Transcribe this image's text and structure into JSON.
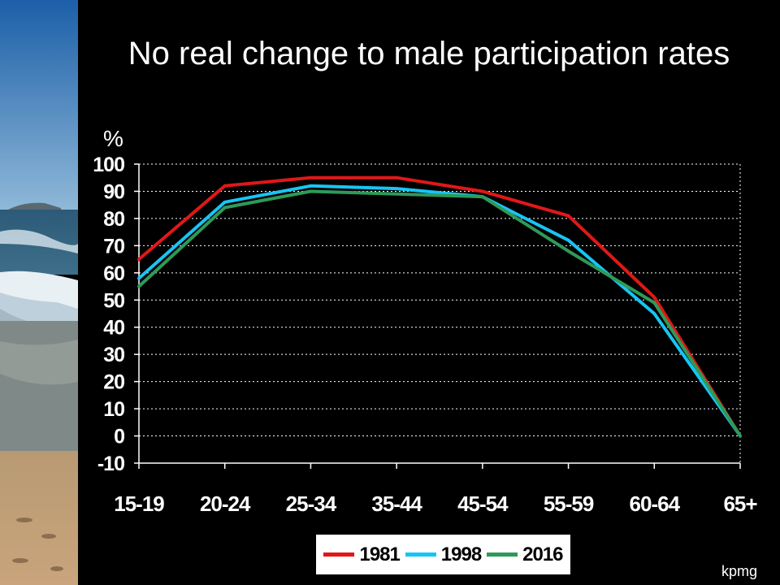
{
  "title": "No real change to male participation rates",
  "footer": "kpmg",
  "colors": {
    "1981": "#e01818",
    "1998": "#18c4f4",
    "2016": "#2e9a58",
    "background": "#000000"
  },
  "chart_data": {
    "type": "line",
    "title": "No real change to male participation rates",
    "xlabel": "",
    "ylabel": "%",
    "categories": [
      "15-19",
      "20-24",
      "25-34",
      "35-44",
      "45-54",
      "55-59",
      "60-64",
      "65+"
    ],
    "ylim": [
      -10,
      100
    ],
    "yticks": [
      -10,
      0,
      10,
      20,
      30,
      40,
      50,
      60,
      70,
      80,
      90,
      100
    ],
    "grid": true,
    "legend_position": "bottom",
    "series": [
      {
        "name": "1981",
        "color": "#e01818",
        "values": [
          65,
          92,
          95,
          95,
          90,
          81,
          51,
          0
        ]
      },
      {
        "name": "1998",
        "color": "#18c4f4",
        "values": [
          58,
          86,
          92,
          91,
          88,
          72,
          45,
          0
        ]
      },
      {
        "name": "2016",
        "color": "#2e9a58",
        "values": [
          55,
          84,
          90,
          89,
          88,
          68,
          49,
          0
        ]
      }
    ]
  }
}
